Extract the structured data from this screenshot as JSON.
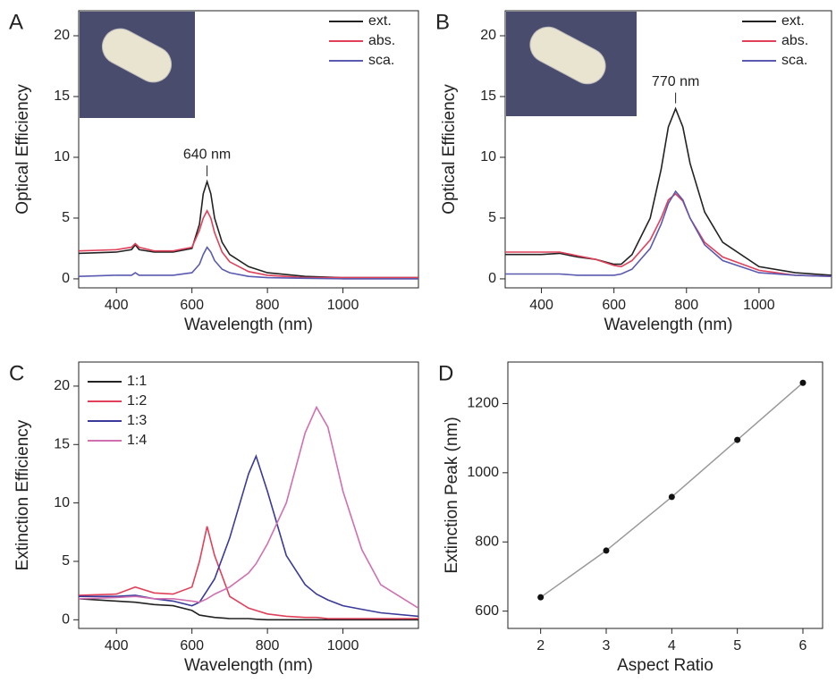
{
  "chart_data": [
    {
      "type": "line",
      "panel": "A",
      "xlabel": "Wavelength (nm)",
      "ylabel": "Optical Efficiency",
      "annotation": "640 nm",
      "xlim": [
        300,
        1200
      ],
      "ylim": [
        -0.74,
        22.06
      ],
      "xticks": [
        400,
        600,
        800,
        1000
      ],
      "yticks": [
        0,
        5,
        10,
        15,
        20
      ],
      "legend": "top-right",
      "x": [
        300,
        400,
        440,
        450,
        460,
        500,
        550,
        600,
        620,
        630,
        640,
        650,
        660,
        680,
        700,
        750,
        800,
        900,
        1000,
        1200
      ],
      "series": [
        {
          "name": "ext.",
          "color": "#222222",
          "values": [
            2.1,
            2.2,
            2.4,
            2.8,
            2.4,
            2.2,
            2.2,
            2.5,
            4.5,
            7,
            8,
            7,
            5,
            3,
            2,
            1,
            0.5,
            0.2,
            0.1,
            0.1
          ]
        },
        {
          "name": "abs.",
          "color": "#e0405a",
          "values": [
            2.3,
            2.4,
            2.6,
            2.9,
            2.6,
            2.3,
            2.3,
            2.6,
            4,
            5,
            5.6,
            5,
            3.8,
            2.2,
            1.4,
            0.6,
            0.3,
            0.1,
            0.1,
            0.1
          ]
        },
        {
          "name": "sca.",
          "color": "#5a5ab0",
          "values": [
            0.2,
            0.3,
            0.3,
            0.5,
            0.3,
            0.3,
            0.3,
            0.5,
            1.2,
            2,
            2.6,
            2.2,
            1.5,
            0.8,
            0.5,
            0.2,
            0.1,
            0.05,
            0,
            0
          ]
        }
      ]
    },
    {
      "type": "line",
      "panel": "B",
      "xlabel": "Wavelength (nm)",
      "ylabel": "Optical Efficiency",
      "annotation": "770 nm",
      "xlim": [
        300,
        1200
      ],
      "ylim": [
        -0.74,
        22.06
      ],
      "xticks": [
        400,
        600,
        800,
        1000
      ],
      "yticks": [
        0,
        5,
        10,
        15,
        20
      ],
      "legend": "top-right",
      "x": [
        300,
        400,
        450,
        500,
        550,
        600,
        620,
        650,
        700,
        730,
        750,
        770,
        790,
        810,
        850,
        900,
        1000,
        1100,
        1200
      ],
      "series": [
        {
          "name": "ext.",
          "color": "#222222",
          "values": [
            2,
            2,
            2.1,
            1.8,
            1.6,
            1.2,
            1.2,
            2,
            5,
            9,
            12.5,
            14,
            12.5,
            9.5,
            5.5,
            3,
            1,
            0.5,
            0.3
          ]
        },
        {
          "name": "abs.",
          "color": "#e0405a",
          "values": [
            2.2,
            2.2,
            2.2,
            1.9,
            1.6,
            1.1,
            1,
            1.5,
            3.2,
            5,
            6.5,
            7,
            6.4,
            5,
            3,
            1.8,
            0.7,
            0.3,
            0.2
          ]
        },
        {
          "name": "sca.",
          "color": "#5a5ab0",
          "values": [
            0.4,
            0.4,
            0.4,
            0.3,
            0.3,
            0.3,
            0.4,
            0.8,
            2.5,
            4.5,
            6.2,
            7.2,
            6.5,
            5,
            2.8,
            1.5,
            0.5,
            0.3,
            0.2
          ]
        }
      ]
    },
    {
      "type": "line",
      "panel": "C",
      "xlabel": "Wavelength (nm)",
      "ylabel": "Extinction Efficiency",
      "xlim": [
        300,
        1200
      ],
      "ylim": [
        -0.74,
        22.06
      ],
      "xticks": [
        400,
        600,
        800,
        1000
      ],
      "yticks": [
        0,
        5,
        10,
        15,
        20
      ],
      "legend": "top-left",
      "x": [
        300,
        400,
        450,
        500,
        550,
        600,
        620,
        640,
        660,
        700,
        750,
        770,
        800,
        850,
        900,
        930,
        960,
        1000,
        1050,
        1100,
        1200
      ],
      "series": [
        {
          "name": "1:1",
          "color": "#222222",
          "values": [
            1.8,
            1.6,
            1.5,
            1.3,
            1.2,
            0.8,
            0.4,
            0.3,
            0.2,
            0.1,
            0.1,
            0.05,
            0,
            0,
            0,
            0,
            0,
            0,
            0,
            0,
            0
          ]
        },
        {
          "name": "1:2",
          "color": "#e0405a",
          "values": [
            2.1,
            2.2,
            2.8,
            2.3,
            2.2,
            2.8,
            5,
            8,
            5.5,
            2,
            1,
            0.8,
            0.5,
            0.3,
            0.2,
            0.2,
            0.1,
            0.1,
            0.1,
            0.1,
            0.1
          ]
        },
        {
          "name": "1:3",
          "color": "#3a3a9a",
          "values": [
            2,
            2,
            2.1,
            1.8,
            1.6,
            1.2,
            1.5,
            2.5,
            3.5,
            7,
            12.5,
            14,
            11,
            5.5,
            3,
            2.2,
            1.7,
            1.2,
            0.9,
            0.6,
            0.3
          ]
        },
        {
          "name": "1:4",
          "color": "#d070b0",
          "values": [
            1.8,
            1.9,
            2,
            1.8,
            1.8,
            1.6,
            1.5,
            1.8,
            2.2,
            2.8,
            4,
            4.8,
            6.5,
            10,
            16,
            18.2,
            16.5,
            11,
            6,
            3,
            1
          ]
        }
      ]
    },
    {
      "type": "scatter",
      "panel": "D",
      "xlabel": "Aspect Ratio",
      "ylabel": "Extinction Peak (nm)",
      "xlim": [
        1.5,
        6.3
      ],
      "ylim": [
        550,
        1320
      ],
      "xticks": [
        2,
        3,
        4,
        5,
        6
      ],
      "yticks": [
        600,
        800,
        1000,
        1200
      ],
      "x": [
        2,
        3,
        4,
        5,
        6
      ],
      "values": [
        640,
        775,
        930,
        1095,
        1260
      ],
      "color": "#111111",
      "line": true,
      "line_color": "#999999"
    }
  ]
}
